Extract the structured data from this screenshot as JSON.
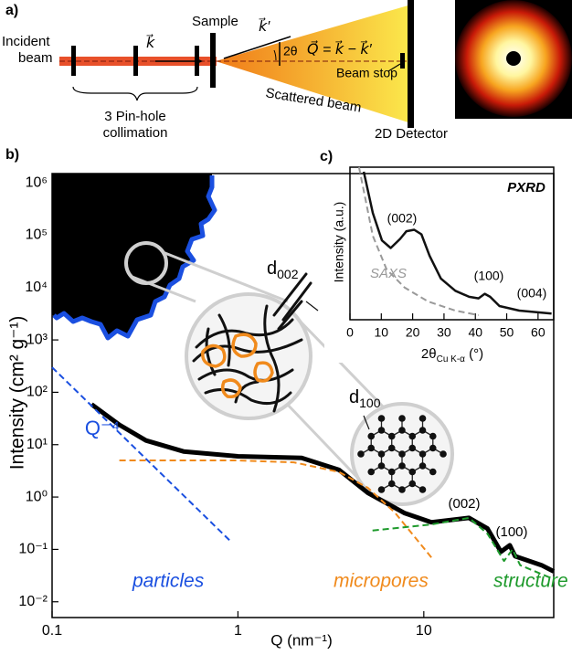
{
  "panel_a": {
    "label": "a)",
    "incident_beam": [
      "Incident",
      "beam"
    ],
    "sample": "Sample",
    "collimation": [
      "3 Pin-hole",
      "collimation"
    ],
    "scattered_beam": "Scattered beam",
    "beam_stop": "Beam stop",
    "detector": "2D Detector",
    "angle": "2θ",
    "k_in": "k⃗",
    "k_out": "k⃗′",
    "q_def": "Q⃗ = k⃗ − k⃗′"
  },
  "illustration": {
    "d002": {
      "symbol": "d",
      "subscript": "002"
    },
    "d100": {
      "symbol": "d",
      "subscript": "100"
    }
  },
  "chart_data": [
    {
      "type": "line",
      "panel_label": "b)",
      "xlabel": "Q (nm⁻¹)",
      "ylabel": "Intensity (cm² g⁻¹)",
      "xscale": "log",
      "yscale": "log",
      "xlim": [
        0.1,
        50
      ],
      "ylim": [
        0.005,
        1500000
      ],
      "xticks": [
        0.1,
        1,
        10
      ],
      "yticks": [
        {
          "value": 0.01,
          "label": "10⁻²"
        },
        {
          "value": 0.1,
          "label": "10⁻¹"
        },
        {
          "value": 1,
          "label": "10⁰"
        },
        {
          "value": 10,
          "label": "10¹"
        },
        {
          "value": 100,
          "label": "10²"
        },
        {
          "value": 1000,
          "label": "10³"
        },
        {
          "value": 10000,
          "label": "10⁴"
        },
        {
          "value": 100000,
          "label": "10⁵"
        },
        {
          "value": 1000000,
          "label": "10⁶"
        }
      ],
      "annotations": [
        "Q⁻⁴",
        "(002)",
        "(100)"
      ],
      "series": [
        {
          "color": "#000000",
          "width": 5,
          "x": [
            0.163,
            0.23,
            0.32,
            0.51,
            1,
            2.2,
            3.5,
            5,
            7.9,
            11,
            17.5,
            22,
            26,
            29,
            31,
            43,
            50
          ],
          "values": [
            59,
            24,
            12,
            7.4,
            6,
            5.6,
            3.3,
            1.2,
            0.49,
            0.33,
            0.4,
            0.25,
            0.09,
            0.12,
            0.074,
            0.05,
            0.038
          ]
        },
        {
          "name": "particles",
          "color": "#1a4fe0",
          "dashed": true,
          "x": [
            0.1,
            0.9
          ],
          "values": [
            300,
            0.15
          ]
        },
        {
          "name": "micropores",
          "color": "#f08a1c",
          "dashed": true,
          "x": [
            0.23,
            1,
            2,
            3.5,
            5,
            7,
            11
          ],
          "values": [
            5,
            5,
            4.6,
            3,
            1.5,
            0.5,
            0.07
          ]
        },
        {
          "name": "structure",
          "color": "#1e9a2c",
          "dashed": true,
          "x": [
            5.3,
            11,
            17.5,
            22,
            27,
            30,
            33,
            50
          ],
          "values": [
            0.23,
            0.3,
            0.4,
            0.2,
            0.06,
            0.1,
            0.05,
            0.027
          ]
        }
      ]
    },
    {
      "type": "line",
      "panel_label": "c)",
      "title": "PXRD",
      "xlabel": {
        "main": "2θ",
        "sub": "Cu K-α",
        "unit": " (°)"
      },
      "ylabel": "Intensity (a.u.)",
      "xlim": [
        0,
        65
      ],
      "ylim": [
        0,
        1
      ],
      "xticks": [
        0,
        10,
        20,
        30,
        40,
        50,
        60
      ],
      "annotations": [
        "(002)",
        "(100)",
        "(004)"
      ],
      "series": [
        {
          "color": "#111111",
          "width": 2.5,
          "x": [
            4.4,
            7.3,
            10.2,
            13,
            16,
            18,
            20.5,
            22.8,
            25.4,
            29,
            33.6,
            38,
            41,
            43,
            44.7,
            47.7,
            54,
            64.3
          ],
          "values": [
            0.97,
            0.7,
            0.52,
            0.47,
            0.53,
            0.58,
            0.59,
            0.56,
            0.42,
            0.27,
            0.19,
            0.15,
            0.14,
            0.17,
            0.15,
            0.09,
            0.06,
            0.04
          ]
        },
        {
          "name": "SAXS",
          "color": "#999999",
          "dashed": true,
          "x": [
            2.9,
            7.3,
            11.7,
            17.5,
            24.9,
            33.6,
            41
          ],
          "values": [
            1,
            0.55,
            0.33,
            0.21,
            0.12,
            0.06,
            0.03
          ]
        }
      ]
    }
  ]
}
